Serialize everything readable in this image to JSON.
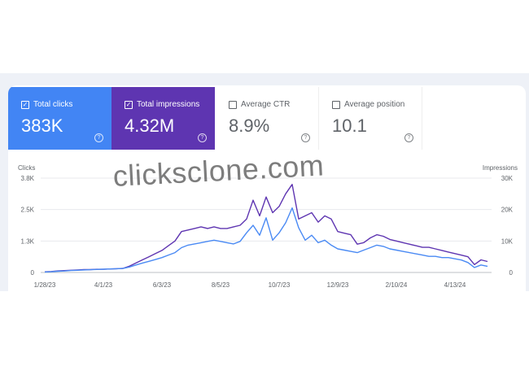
{
  "metrics": [
    {
      "label": "Total clicks",
      "value": "383K",
      "checked": true
    },
    {
      "label": "Total impressions",
      "value": "4.32M",
      "checked": true
    },
    {
      "label": "Average CTR",
      "value": "8.9%",
      "checked": false
    },
    {
      "label": "Average position",
      "value": "10.1",
      "checked": false
    }
  ],
  "help_glyph": "?",
  "check_glyph": "✓",
  "watermark": "clicksclone.com",
  "colors": {
    "clicks": "#4a8af4",
    "impressions": "#5e35b1",
    "grid": "#e8eaed"
  },
  "chart_data": {
    "type": "line",
    "x_unit": "week index from 1/28/23",
    "xtick_labels": [
      "1/28/23",
      "4/1/23",
      "6/3/23",
      "8/5/23",
      "10/7/23",
      "12/9/23",
      "2/10/24",
      "4/13/24"
    ],
    "xtick_weeks": [
      0,
      9,
      18,
      27,
      36,
      45,
      54,
      63
    ],
    "left_axis": {
      "label": "Clicks",
      "ticks": [
        "0",
        "1.3K",
        "2.5K",
        "3.8K"
      ],
      "tick_values": [
        0,
        1267,
        2533,
        3800
      ],
      "range": [
        0,
        3800
      ]
    },
    "right_axis": {
      "label": "Impressions",
      "ticks": [
        "0",
        "10K",
        "20K",
        "30K"
      ],
      "tick_values": [
        0,
        10000,
        20000,
        30000
      ],
      "range": [
        0,
        30000
      ]
    },
    "series": [
      {
        "name": "Clicks",
        "axis": "left",
        "values": [
          20,
          30,
          50,
          60,
          80,
          90,
          100,
          110,
          120,
          130,
          140,
          150,
          160,
          220,
          300,
          380,
          450,
          520,
          600,
          700,
          800,
          1000,
          1100,
          1150,
          1200,
          1250,
          1300,
          1250,
          1200,
          1150,
          1250,
          1600,
          1900,
          1500,
          2200,
          1300,
          1600,
          2000,
          2600,
          1800,
          1300,
          1500,
          1200,
          1300,
          1100,
          950,
          900,
          850,
          800,
          900,
          1000,
          1100,
          1050,
          950,
          900,
          850,
          800,
          750,
          700,
          650,
          650,
          600,
          600,
          550,
          500,
          400,
          200,
          300,
          250
        ]
      },
      {
        "name": "Impressions",
        "axis": "right",
        "values": [
          200,
          300,
          500,
          600,
          700,
          800,
          900,
          900,
          1000,
          1000,
          1100,
          1200,
          1300,
          2000,
          3000,
          4000,
          5000,
          6000,
          7000,
          8500,
          10000,
          13000,
          13500,
          14000,
          14500,
          14000,
          14500,
          14000,
          14000,
          14500,
          15000,
          17000,
          23000,
          18000,
          24000,
          19000,
          21000,
          25000,
          28000,
          17000,
          18000,
          19000,
          16000,
          18000,
          17000,
          13000,
          12500,
          12000,
          9000,
          9500,
          11000,
          12000,
          11500,
          10500,
          10000,
          9500,
          9000,
          8500,
          8000,
          8000,
          7500,
          7000,
          6500,
          6000,
          5500,
          5000,
          2500,
          4000,
          3500
        ]
      }
    ]
  }
}
